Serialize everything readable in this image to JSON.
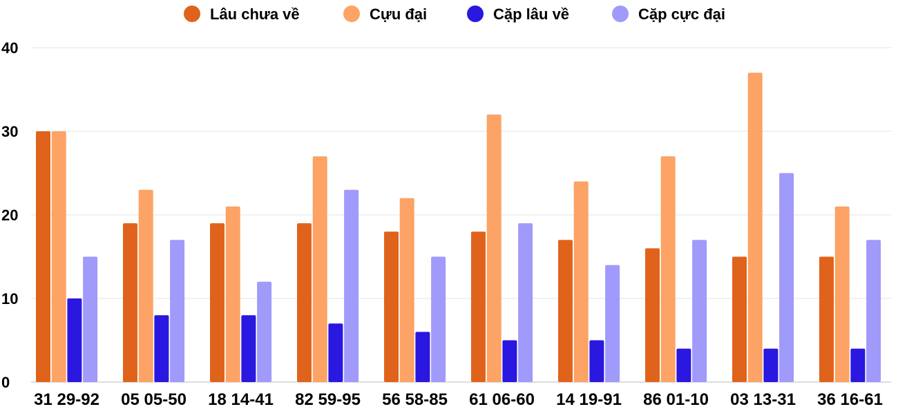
{
  "chart_data": {
    "type": "bar",
    "title": "",
    "xlabel": "",
    "ylabel": "",
    "ylim": [
      0,
      40
    ],
    "yticks": [
      0,
      10,
      20,
      30,
      40
    ],
    "grid": true,
    "legend_position": "top",
    "categories": [
      "31 29-92",
      "05 05-50",
      "18 14-41",
      "82 59-95",
      "56 58-85",
      "61 06-60",
      "14 19-91",
      "86 01-10",
      "03 13-31",
      "36 16-61"
    ],
    "series": [
      {
        "name": "Lâu chưa về",
        "color": "#e0631b",
        "values": [
          30,
          19,
          19,
          19,
          18,
          18,
          17,
          16,
          15,
          15
        ]
      },
      {
        "name": "Cựu đại",
        "color": "#fca365",
        "values": [
          30,
          23,
          21,
          27,
          22,
          32,
          24,
          27,
          37,
          21
        ]
      },
      {
        "name": "Cặp lâu về",
        "color": "#2a17e0",
        "values": [
          10,
          8,
          8,
          7,
          6,
          5,
          5,
          4,
          4,
          4
        ]
      },
      {
        "name": "Cặp cực đại",
        "color": "#a09afa",
        "values": [
          15,
          17,
          12,
          23,
          15,
          19,
          14,
          17,
          25,
          17
        ]
      }
    ]
  }
}
